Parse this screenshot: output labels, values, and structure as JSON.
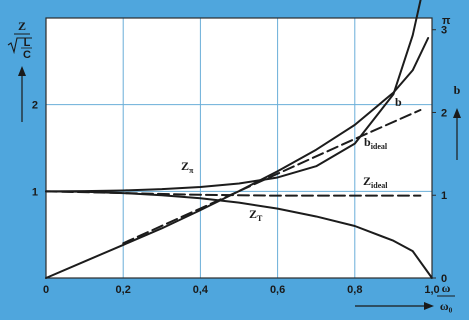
{
  "chart_data": {
    "type": "line",
    "x_axis": {
      "label_top": "ω",
      "label_bottom": "ω₀",
      "range": [
        0,
        1
      ],
      "ticks": [
        "0",
        "0,2",
        "0,4",
        "0,6",
        "0,8",
        "1,0"
      ]
    },
    "y_left": {
      "label_top": "Z",
      "label_sqrt": "L",
      "label_den": "C",
      "range": [
        0,
        3
      ],
      "ticks": [
        "1",
        "2"
      ]
    },
    "y_right": {
      "label": "b",
      "range": [
        0,
        3.14159
      ],
      "ticks": [
        "0",
        "1",
        "2",
        "3"
      ],
      "pi_label": "π"
    },
    "grid": true,
    "series": [
      {
        "name": "Z_π",
        "axis": "left",
        "style": "solid",
        "x": [
          0,
          0.1,
          0.2,
          0.3,
          0.4,
          0.5,
          0.6,
          0.7,
          0.8,
          0.9,
          0.95,
          0.98
        ],
        "values": [
          1.0,
          1.003,
          1.01,
          1.025,
          1.05,
          1.09,
          1.16,
          1.29,
          1.55,
          2.12,
          2.8,
          3.4
        ]
      },
      {
        "name": "Z_T",
        "axis": "left",
        "style": "solid",
        "x": [
          0,
          0.1,
          0.2,
          0.3,
          0.4,
          0.5,
          0.6,
          0.7,
          0.8,
          0.9,
          0.95,
          1.0
        ],
        "values": [
          1.0,
          0.995,
          0.98,
          0.955,
          0.92,
          0.87,
          0.8,
          0.71,
          0.6,
          0.43,
          0.31,
          0.0
        ]
      },
      {
        "name": "Z_ideal",
        "axis": "left",
        "style": "dashed",
        "x": [
          0,
          0.2,
          0.4,
          0.6,
          0.8,
          0.97
        ],
        "values": [
          1.0,
          0.98,
          0.96,
          0.95,
          0.95,
          0.95
        ]
      },
      {
        "name": "b",
        "axis": "right",
        "style": "solid",
        "x": [
          0,
          0.1,
          0.2,
          0.3,
          0.4,
          0.5,
          0.6,
          0.7,
          0.8,
          0.9,
          0.95,
          0.99
        ],
        "values": [
          0.0,
          0.2,
          0.4,
          0.6,
          0.82,
          1.05,
          1.29,
          1.55,
          1.85,
          2.24,
          2.51,
          2.9
        ]
      },
      {
        "name": "b_ideal",
        "axis": "right",
        "style": "dashed",
        "x": [
          0.2,
          0.4,
          0.6,
          0.8,
          0.97
        ],
        "values": [
          0.42,
          0.84,
          1.26,
          1.68,
          2.03
        ]
      }
    ],
    "annotations": [
      {
        "text": "Z",
        "sub": "π"
      },
      {
        "text": "Z",
        "sub": "T"
      },
      {
        "text": "Z",
        "sub": "ideal"
      },
      {
        "text": "b",
        "sub": ""
      },
      {
        "text": "b",
        "sub": "ideal"
      }
    ]
  }
}
